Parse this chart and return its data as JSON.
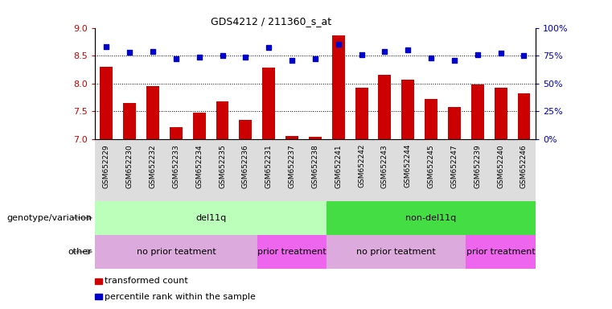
{
  "title": "GDS4212 / 211360_s_at",
  "samples": [
    "GSM652229",
    "GSM652230",
    "GSM652232",
    "GSM652233",
    "GSM652234",
    "GSM652235",
    "GSM652236",
    "GSM652231",
    "GSM652237",
    "GSM652238",
    "GSM652241",
    "GSM652242",
    "GSM652243",
    "GSM652244",
    "GSM652245",
    "GSM652247",
    "GSM652239",
    "GSM652240",
    "GSM652246"
  ],
  "bar_values": [
    8.3,
    7.65,
    7.95,
    7.22,
    7.48,
    7.67,
    7.34,
    8.28,
    7.05,
    7.04,
    8.87,
    7.93,
    8.16,
    8.07,
    7.72,
    7.58,
    7.98,
    7.92,
    7.82
  ],
  "dot_values_pct": [
    83,
    78,
    79,
    72,
    74,
    75,
    74,
    82,
    71,
    72,
    85,
    76,
    79,
    80,
    73,
    71,
    76,
    77,
    75
  ],
  "ylim_left": [
    7.0,
    9.0
  ],
  "ylim_right": [
    0,
    100
  ],
  "yticks_left": [
    7.0,
    7.5,
    8.0,
    8.5,
    9.0
  ],
  "yticks_right": [
    0,
    25,
    50,
    75,
    100
  ],
  "ytick_labels_right": [
    "0%",
    "25%",
    "50%",
    "75%",
    "100%"
  ],
  "hlines": [
    7.5,
    8.0,
    8.5
  ],
  "bar_color": "#CC0000",
  "dot_color": "#0000CC",
  "genotype_groups": [
    {
      "label": "del11q",
      "start": 0,
      "end": 10,
      "color": "#BBFFBB"
    },
    {
      "label": "non-del11q",
      "start": 10,
      "end": 19,
      "color": "#44DD44"
    }
  ],
  "other_groups": [
    {
      "label": "no prior teatment",
      "start": 0,
      "end": 7,
      "color": "#DDAADD"
    },
    {
      "label": "prior treatment",
      "start": 7,
      "end": 10,
      "color": "#EE66EE"
    },
    {
      "label": "no prior teatment",
      "start": 10,
      "end": 16,
      "color": "#DDAADD"
    },
    {
      "label": "prior treatment",
      "start": 16,
      "end": 19,
      "color": "#EE66EE"
    }
  ],
  "genotype_label": "genotype/variation",
  "other_label": "other",
  "legend_items": [
    {
      "label": "transformed count",
      "color": "#CC0000"
    },
    {
      "label": "percentile rank within the sample",
      "color": "#0000CC"
    }
  ],
  "fig_width": 7.61,
  "fig_height": 3.84,
  "dpi": 100
}
